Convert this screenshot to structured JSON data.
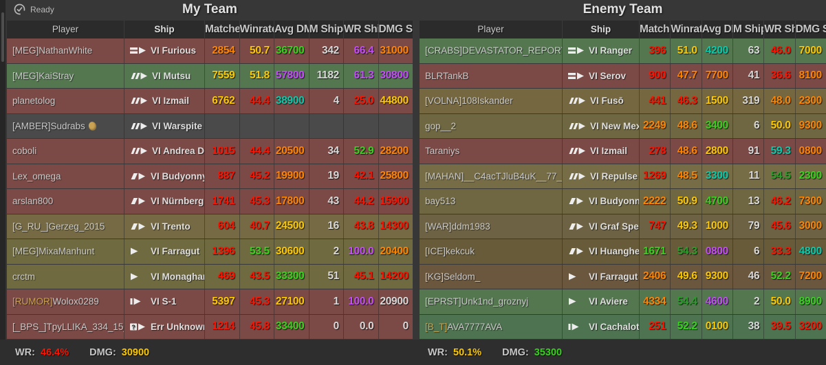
{
  "topbar": {
    "ready_label": "Ready"
  },
  "columns": [
    "Player",
    "Ship",
    "Matches",
    "Winrate",
    "Avg DMG",
    "M Ship",
    "WR Ship",
    "DMG Ship"
  ],
  "palette": {
    "red": "#fe1400",
    "orange": "#ff8500",
    "yellow": "#fcc800",
    "green": "#37d21d",
    "dgreen": "#2b9e2b",
    "teal": "#08cbad",
    "purple": "#c44dfa",
    "white": "#d8d8d8",
    "tag_gold": "#c8a24f"
  },
  "teams": [
    {
      "title": "My Team",
      "footer": {
        "wr_label": "WR:",
        "wr_value": "46.4%",
        "wr_color": "red",
        "dmg_label": "DMG:",
        "dmg_value": "30900",
        "dmg_color": "yellow"
      },
      "rows": [
        {
          "tag": "[MEG]",
          "tag_color": "",
          "name": "NathanWhite",
          "badge": false,
          "ship_type": "cv",
          "ship_name": "VI Furious",
          "bg": "#7b4a46",
          "cells": [
            [
              "2854",
              "orange"
            ],
            [
              "50.7",
              "yellow"
            ],
            [
              "36700",
              "green"
            ],
            [
              "342",
              "white"
            ],
            [
              "66.4",
              "purple"
            ],
            [
              "31000",
              "orange"
            ]
          ]
        },
        {
          "tag": "[MEG]",
          "tag_color": "",
          "name": "KaiStray",
          "badge": false,
          "ship_type": "bb",
          "ship_name": "VI Mutsu",
          "bg": "#547750",
          "cells": [
            [
              "7559",
              "yellow"
            ],
            [
              "51.8",
              "yellow"
            ],
            [
              "57800",
              "purple"
            ],
            [
              "1182",
              "white"
            ],
            [
              "61.3",
              "purple"
            ],
            [
              "30800",
              "purple"
            ]
          ]
        },
        {
          "tag": "",
          "tag_color": "",
          "name": "planetolog",
          "badge": false,
          "ship_type": "bb",
          "ship_name": "VI Izmail",
          "bg": "#7b4a46",
          "cells": [
            [
              "6762",
              "yellow"
            ],
            [
              "44.4",
              "red"
            ],
            [
              "38900",
              "teal"
            ],
            [
              "4",
              "white"
            ],
            [
              "25.0",
              "red"
            ],
            [
              "44800",
              "yellow"
            ]
          ]
        },
        {
          "tag": "[AMBER]",
          "tag_color": "",
          "name": "Sudrabs",
          "badge": true,
          "ship_type": "bb",
          "ship_name": "VI Warspite",
          "bg": "#4a4a4a",
          "cells": [
            [
              "",
              ""
            ],
            [
              "",
              ""
            ],
            [
              "",
              ""
            ],
            [
              "",
              ""
            ],
            [
              "",
              ""
            ],
            [
              "",
              ""
            ]
          ]
        },
        {
          "tag": "",
          "tag_color": "",
          "name": "coboli",
          "badge": false,
          "ship_type": "bb",
          "ship_name": "VI Andrea Doria",
          "bg": "#7b4a46",
          "cells": [
            [
              "1015",
              "red"
            ],
            [
              "44.4",
              "red"
            ],
            [
              "20500",
              "orange"
            ],
            [
              "34",
              "white"
            ],
            [
              "52.9",
              "green"
            ],
            [
              "28200",
              "orange"
            ]
          ]
        },
        {
          "tag": "",
          "tag_color": "",
          "name": "Lex_omega",
          "badge": false,
          "ship_type": "ca",
          "ship_name": "VI Budyonny",
          "bg": "#7b4a46",
          "cells": [
            [
              "887",
              "red"
            ],
            [
              "45.2",
              "red"
            ],
            [
              "19900",
              "orange"
            ],
            [
              "19",
              "white"
            ],
            [
              "42.1",
              "red"
            ],
            [
              "25800",
              "orange"
            ]
          ]
        },
        {
          "tag": "",
          "tag_color": "",
          "name": "arslan800",
          "badge": false,
          "ship_type": "ca",
          "ship_name": "VI Nürnberg",
          "bg": "#7b4a46",
          "cells": [
            [
              "1741",
              "red"
            ],
            [
              "45.3",
              "red"
            ],
            [
              "17800",
              "orange"
            ],
            [
              "43",
              "white"
            ],
            [
              "44.2",
              "red"
            ],
            [
              "15900",
              "red"
            ]
          ]
        },
        {
          "tag": "[G_RU_]",
          "tag_color": "",
          "name": "Gerzeg_2015",
          "badge": false,
          "ship_type": "ca",
          "ship_name": "VI Trento",
          "bg": "#756a44",
          "cells": [
            [
              "604",
              "red"
            ],
            [
              "40.7",
              "red"
            ],
            [
              "24500",
              "yellow"
            ],
            [
              "16",
              "white"
            ],
            [
              "43.8",
              "red"
            ],
            [
              "14300",
              "red"
            ]
          ]
        },
        {
          "tag": "[MEG]",
          "tag_color": "",
          "name": "MixaManhunt",
          "badge": false,
          "ship_type": "dd",
          "ship_name": "VI Farragut",
          "bg": "#6f6a3f",
          "cells": [
            [
              "1396",
              "red"
            ],
            [
              "53.5",
              "green"
            ],
            [
              "30600",
              "yellow"
            ],
            [
              "2",
              "white"
            ],
            [
              "100.0",
              "purple"
            ],
            [
              "20400",
              "orange"
            ]
          ]
        },
        {
          "tag": "",
          "tag_color": "",
          "name": "crctm",
          "badge": false,
          "ship_type": "dd",
          "ship_name": "VI Monaghan",
          "bg": "#6f6a3f",
          "cells": [
            [
              "469",
              "red"
            ],
            [
              "43.5",
              "red"
            ],
            [
              "33300",
              "green"
            ],
            [
              "51",
              "white"
            ],
            [
              "45.1",
              "red"
            ],
            [
              "14200",
              "red"
            ]
          ]
        },
        {
          "tag": "[RUMOR]",
          "tag_color": "tag_gold",
          "name": "Wolox0289",
          "badge": false,
          "ship_type": "ss",
          "ship_name": "VI S-1",
          "bg": "#7b4a46",
          "cells": [
            [
              "5397",
              "yellow"
            ],
            [
              "45.3",
              "red"
            ],
            [
              "27100",
              "yellow"
            ],
            [
              "1",
              "white"
            ],
            [
              "100.0",
              "purple"
            ],
            [
              "20900",
              "white"
            ]
          ]
        },
        {
          "tag": "[_BPS_]",
          "tag_color": "",
          "name": "TpyLLIKA_334_15_lol",
          "badge": false,
          "ship_type": "unknown",
          "ship_name": "Err Unknown",
          "bg": "#7b4a46",
          "cells": [
            [
              "1214",
              "red"
            ],
            [
              "45.8",
              "red"
            ],
            [
              "33400",
              "green"
            ],
            [
              "0",
              "white"
            ],
            [
              "0.0",
              "white"
            ],
            [
              "0",
              "white"
            ]
          ]
        }
      ]
    },
    {
      "title": "Enemy Team",
      "footer": {
        "wr_label": "WR:",
        "wr_value": "50.1%",
        "wr_color": "yellow",
        "dmg_label": "DMG:",
        "dmg_value": "35300",
        "dmg_color": "green"
      },
      "rows": [
        {
          "tag": "[CRABS]",
          "tag_color": "",
          "name": "DEVASTATOR_REPORTING",
          "badge": false,
          "ship_type": "cv",
          "ship_name": "VI Ranger",
          "bg": "#547750",
          "cells": [
            [
              "396",
              "red"
            ],
            [
              "51.0",
              "yellow"
            ],
            [
              "4200",
              "teal"
            ],
            [
              "63",
              "white"
            ],
            [
              "46.0",
              "red"
            ],
            [
              "7000",
              "yellow"
            ]
          ]
        },
        {
          "tag": "",
          "tag_color": "",
          "name": "BLRTankB",
          "badge": false,
          "ship_type": "cv",
          "ship_name": "VI Serov",
          "bg": "#7b4a46",
          "cells": [
            [
              "900",
              "red"
            ],
            [
              "47.7",
              "orange"
            ],
            [
              "7700",
              "orange"
            ],
            [
              "41",
              "white"
            ],
            [
              "36.6",
              "red"
            ],
            [
              "8100",
              "orange"
            ]
          ]
        },
        {
          "tag": "[VOLNA]",
          "tag_color": "",
          "name": "108Iskander",
          "badge": false,
          "ship_type": "bb",
          "ship_name": "VI Fusō",
          "bg": "#75673f",
          "cells": [
            [
              "441",
              "red"
            ],
            [
              "46.3",
              "red"
            ],
            [
              "1500",
              "yellow"
            ],
            [
              "319",
              "white"
            ],
            [
              "48.0",
              "orange"
            ],
            [
              "2300",
              "orange"
            ]
          ]
        },
        {
          "tag": "",
          "tag_color": "",
          "name": "gop__2",
          "badge": false,
          "ship_type": "bb",
          "ship_name": "VI New Mexico",
          "bg": "#6f6741",
          "cells": [
            [
              "2249",
              "orange"
            ],
            [
              "48.6",
              "orange"
            ],
            [
              "3400",
              "green"
            ],
            [
              "6",
              "white"
            ],
            [
              "50.0",
              "yellow"
            ],
            [
              "9300",
              "orange"
            ]
          ]
        },
        {
          "tag": "",
          "tag_color": "",
          "name": "Taraniys",
          "badge": false,
          "ship_type": "bb",
          "ship_name": "VI Izmail",
          "bg": "#7b4a46",
          "cells": [
            [
              "278",
              "red"
            ],
            [
              "48.6",
              "orange"
            ],
            [
              "2800",
              "yellow"
            ],
            [
              "91",
              "white"
            ],
            [
              "59.3",
              "teal"
            ],
            [
              "0800",
              "orange"
            ]
          ]
        },
        {
          "tag": "[MAHAN]",
          "tag_color": "",
          "name": "__C4acTJluB4uK__77__pyc",
          "badge": false,
          "ship_type": "bb",
          "ship_name": "VI Repulse B",
          "bg": "#766d46",
          "cells": [
            [
              "1269",
              "red"
            ],
            [
              "48.5",
              "orange"
            ],
            [
              "3300",
              "teal"
            ],
            [
              "11",
              "white"
            ],
            [
              "54.5",
              "dgreen"
            ],
            [
              "2300",
              "green"
            ]
          ]
        },
        {
          "tag": "",
          "tag_color": "",
          "name": "bay513",
          "badge": false,
          "ship_type": "ca",
          "ship_name": "VI Budyonny",
          "bg": "#6f6741",
          "cells": [
            [
              "2222",
              "orange"
            ],
            [
              "50.9",
              "yellow"
            ],
            [
              "4700",
              "green"
            ],
            [
              "13",
              "white"
            ],
            [
              "46.2",
              "red"
            ],
            [
              "7300",
              "orange"
            ]
          ]
        },
        {
          "tag": "[WAR]",
          "tag_color": "",
          "name": "ddm1983",
          "badge": false,
          "ship_type": "ca",
          "ship_name": "VI Graf Spee",
          "bg": "#6d6243",
          "cells": [
            [
              "747",
              "red"
            ],
            [
              "49.3",
              "yellow"
            ],
            [
              "1000",
              "yellow"
            ],
            [
              "79",
              "white"
            ],
            [
              "45.6",
              "red"
            ],
            [
              "3000",
              "orange"
            ]
          ]
        },
        {
          "tag": "[ICE]",
          "tag_color": "",
          "name": "kekcuk",
          "badge": false,
          "ship_type": "ca",
          "ship_name": "VI Huanghe",
          "bg": "#675b3a",
          "cells": [
            [
              "1671",
              "green"
            ],
            [
              "54.3",
              "dgreen"
            ],
            [
              "0800",
              "purple"
            ],
            [
              "6",
              "white"
            ],
            [
              "33.3",
              "red"
            ],
            [
              "4800",
              "teal"
            ]
          ]
        },
        {
          "tag": "[KG]",
          "tag_color": "",
          "name": "Seldom_",
          "badge": false,
          "ship_type": "dd",
          "ship_name": "VI Farragut",
          "bg": "#6b573d",
          "cells": [
            [
              "2406",
              "orange"
            ],
            [
              "49.6",
              "yellow"
            ],
            [
              "9300",
              "yellow"
            ],
            [
              "46",
              "white"
            ],
            [
              "52.2",
              "green"
            ],
            [
              "7200",
              "orange"
            ]
          ]
        },
        {
          "tag": "[EPRST]",
          "tag_color": "",
          "name": "Unk1nd_groznyj",
          "badge": false,
          "ship_type": "dd",
          "ship_name": "VI Aviere",
          "bg": "#547750",
          "cells": [
            [
              "4334",
              "orange"
            ],
            [
              "54.4",
              "dgreen"
            ],
            [
              "4600",
              "purple"
            ],
            [
              "2",
              "white"
            ],
            [
              "50.0",
              "yellow"
            ],
            [
              "8900",
              "green"
            ]
          ]
        },
        {
          "tag": "[B_T]",
          "tag_color": "tag_gold",
          "name": "AVA7777AVA",
          "badge": false,
          "ship_type": "ss",
          "ship_name": "VI Cachalot",
          "bg": "#4e7350",
          "cells": [
            [
              "251",
              "red"
            ],
            [
              "52.2",
              "green"
            ],
            [
              "0100",
              "yellow"
            ],
            [
              "38",
              "white"
            ],
            [
              "39.5",
              "red"
            ],
            [
              "3200",
              "red"
            ]
          ]
        }
      ]
    }
  ]
}
